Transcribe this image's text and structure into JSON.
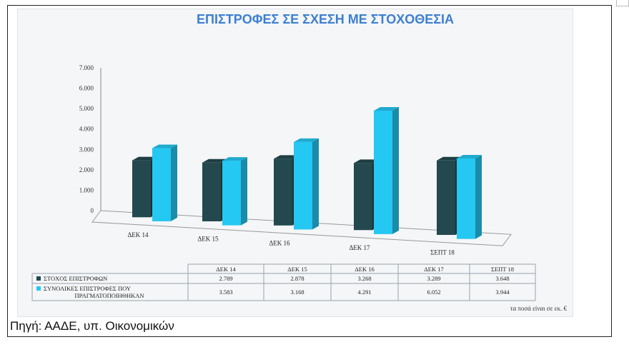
{
  "source_note": "Πηγή: ΑΑΔΕ, υπ. Οικονομικών",
  "colors": {
    "target": "#23494f",
    "actual": "#24c8f2",
    "title": "#3d7fd1"
  },
  "chart_data": {
    "type": "bar",
    "title": "ΕΠΙΣΤΡΟΦΕΣ ΣΕ ΣΧΕΣΗ ΜΕ ΣΤΟΧΟΘΕΣΙΑ",
    "categories": [
      "ΔΕΚ 14",
      "ΔΕΚ 15",
      "ΔΕΚ 16",
      "ΔΕΚ 17",
      "ΣΕΠΤ 18"
    ],
    "series": [
      {
        "name": "ΣΤΟΧΟΣ ΕΠΙΣΤΡΟΦΩΝ",
        "values": [
          2789,
          2878,
          3268,
          3289,
          3648
        ],
        "display": [
          "2.789",
          "2.878",
          "3.268",
          "3.289",
          "3.648"
        ]
      },
      {
        "name": "ΣΥΝΟΛΙΚΕΣ ΕΠΙΣΤΡΟΦΕΣ ΠΟΥ ΠΡΑΓΜΑΤΟΠΟΙΗΘΗΚΑΝ",
        "values": [
          3583,
          3168,
          4291,
          6052,
          3944
        ],
        "display": [
          "3.583",
          "3.168",
          "4.291",
          "6.052",
          "3.944"
        ]
      }
    ],
    "y_ticks": [
      "0",
      "1.000",
      "2.000",
      "3.000",
      "4.000",
      "5.000",
      "6.000",
      "7.000"
    ],
    "ylim": [
      0,
      7000
    ],
    "grid": false,
    "legend": "data table below chart",
    "unit_note": "τα ποσά είναι σε εκ. €"
  }
}
